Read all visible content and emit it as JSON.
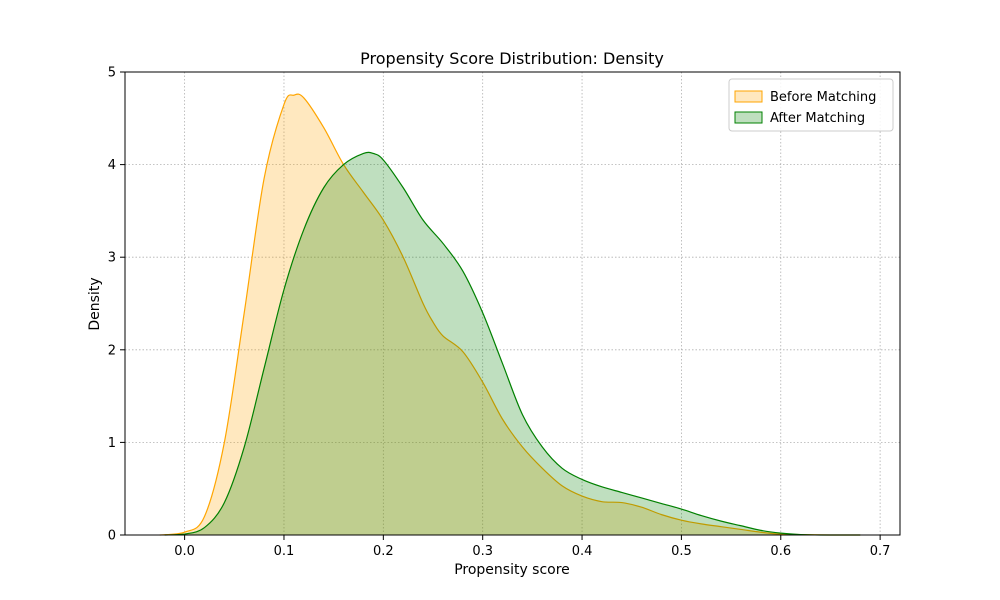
{
  "chart_data": {
    "type": "area",
    "title": "Propensity Score Distribution: Density",
    "xlabel": "Propensity score",
    "ylabel": "Density",
    "xlim": [
      -0.06,
      0.72
    ],
    "ylim": [
      0,
      5
    ],
    "xticks": [
      0.0,
      0.1,
      0.2,
      0.3,
      0.4,
      0.5,
      0.6,
      0.7
    ],
    "xtick_labels": [
      "0.0",
      "0.1",
      "0.2",
      "0.3",
      "0.4",
      "0.5",
      "0.6",
      "0.7"
    ],
    "yticks": [
      0,
      1,
      2,
      3,
      4,
      5
    ],
    "ytick_labels": [
      "0",
      "1",
      "2",
      "3",
      "4",
      "5"
    ],
    "grid": true,
    "legend_position": "top-right",
    "series": [
      {
        "name": "Before Matching",
        "line_color": "#FFA500",
        "fill_color": "#FFA500",
        "fill_opacity": 0.25,
        "x": [
          -0.025,
          0.0,
          0.02,
          0.04,
          0.06,
          0.08,
          0.1,
          0.11,
          0.12,
          0.14,
          0.16,
          0.18,
          0.2,
          0.22,
          0.24,
          0.25,
          0.26,
          0.28,
          0.3,
          0.32,
          0.34,
          0.36,
          0.38,
          0.4,
          0.42,
          0.44,
          0.46,
          0.48,
          0.5,
          0.52,
          0.54,
          0.56,
          0.58,
          0.6,
          0.62,
          0.65,
          0.68
        ],
        "y": [
          0.0,
          0.03,
          0.2,
          1.0,
          2.4,
          3.85,
          4.65,
          4.75,
          4.72,
          4.4,
          4.0,
          3.7,
          3.4,
          3.0,
          2.5,
          2.3,
          2.15,
          1.98,
          1.65,
          1.25,
          0.95,
          0.72,
          0.53,
          0.42,
          0.36,
          0.35,
          0.3,
          0.22,
          0.16,
          0.12,
          0.09,
          0.06,
          0.03,
          0.01,
          0.005,
          0.0,
          0.0
        ]
      },
      {
        "name": "After Matching",
        "line_color": "#008000",
        "fill_color": "#008000",
        "fill_opacity": 0.25,
        "x": [
          -0.02,
          0.0,
          0.02,
          0.04,
          0.06,
          0.08,
          0.1,
          0.12,
          0.14,
          0.16,
          0.18,
          0.19,
          0.2,
          0.22,
          0.24,
          0.26,
          0.28,
          0.3,
          0.32,
          0.34,
          0.36,
          0.38,
          0.4,
          0.42,
          0.44,
          0.46,
          0.48,
          0.5,
          0.52,
          0.54,
          0.56,
          0.58,
          0.6,
          0.62,
          0.64,
          0.68
        ],
        "y": [
          0.0,
          0.01,
          0.08,
          0.35,
          0.95,
          1.8,
          2.65,
          3.3,
          3.75,
          4.0,
          4.12,
          4.12,
          4.05,
          3.75,
          3.4,
          3.15,
          2.85,
          2.4,
          1.85,
          1.3,
          0.95,
          0.72,
          0.6,
          0.52,
          0.46,
          0.4,
          0.34,
          0.28,
          0.21,
          0.15,
          0.1,
          0.05,
          0.02,
          0.005,
          0.0,
          0.0
        ]
      }
    ]
  }
}
